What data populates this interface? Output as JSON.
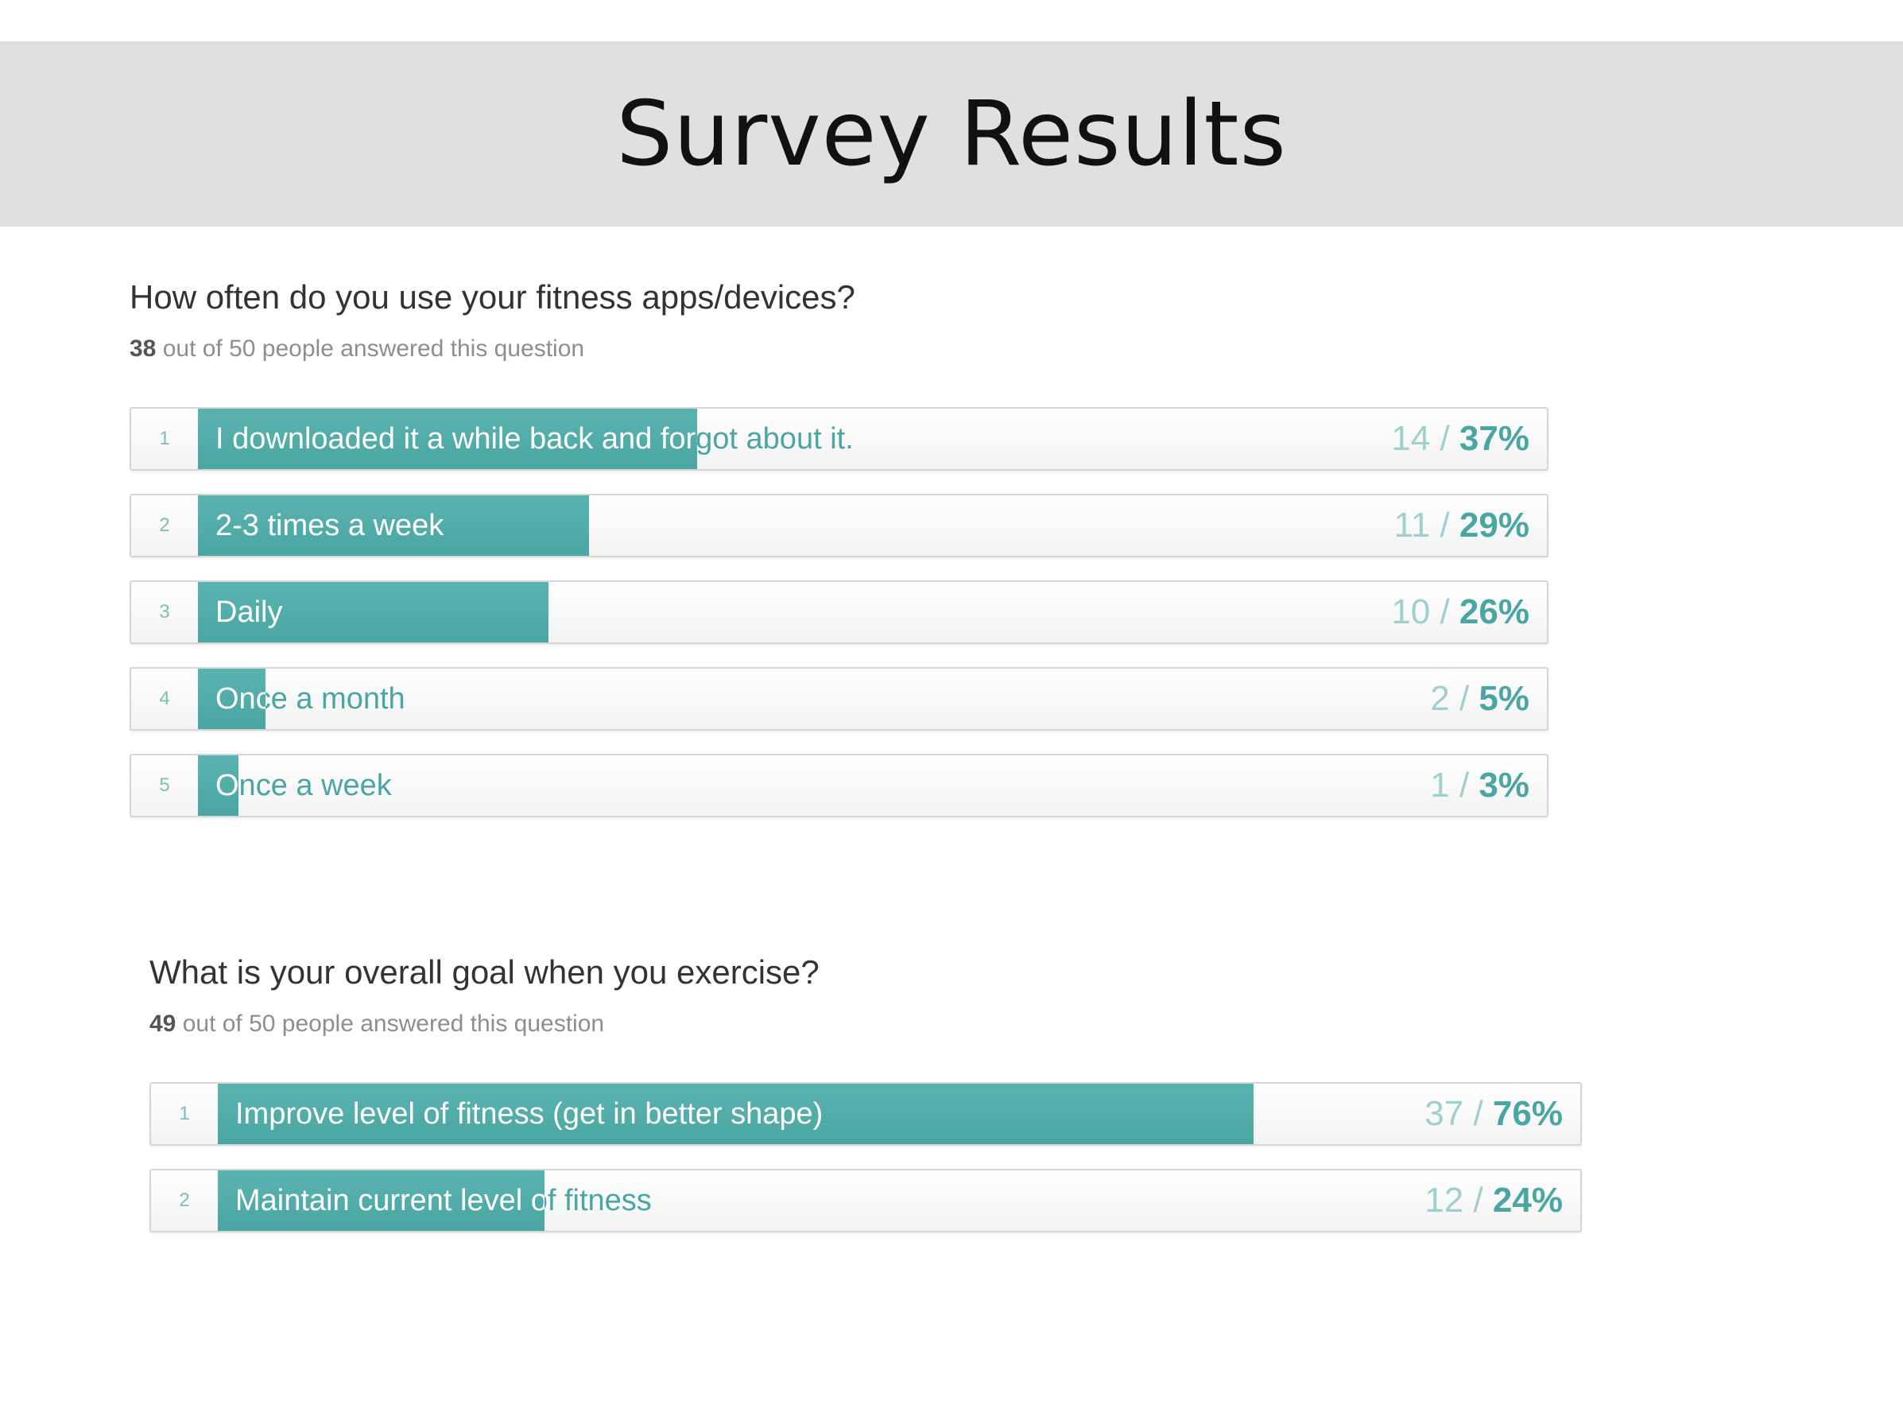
{
  "page": {
    "title": "Survey Results"
  },
  "chart_data": [
    {
      "type": "bar",
      "title": "How often do you use your fitness apps/devices?",
      "answered_count": "38",
      "answered_text": " out of 50 people answered this question",
      "categories": [
        "I downloaded it a while back and forgot about it.",
        "2-3 times a week",
        "Daily",
        "Once a month",
        "Once a week"
      ],
      "numbers": [
        "1",
        "2",
        "3",
        "4",
        "5"
      ],
      "counts": [
        14,
        11,
        10,
        2,
        1
      ],
      "percents": [
        37,
        29,
        26,
        5,
        3
      ],
      "count_labels": [
        "14",
        "11",
        "10",
        "2",
        "1"
      ],
      "percent_labels": [
        "37%",
        "29%",
        "26%",
        "5%",
        "3%"
      ],
      "xlim": [
        0,
        100
      ],
      "bar_color": "#4aa6a2"
    },
    {
      "type": "bar",
      "title": "What is your overall goal when you exercise?",
      "answered_count": "49",
      "answered_text": " out of 50 people answered this question",
      "categories": [
        "Improve level of fitness (get in better shape)",
        "Maintain current level of fitness"
      ],
      "numbers": [
        "1",
        "2"
      ],
      "counts": [
        37,
        12
      ],
      "percents": [
        76,
        24
      ],
      "count_labels": [
        "37",
        "12"
      ],
      "percent_labels": [
        "76%",
        "24%"
      ],
      "xlim": [
        0,
        100
      ],
      "bar_color": "#4aa6a2"
    }
  ]
}
